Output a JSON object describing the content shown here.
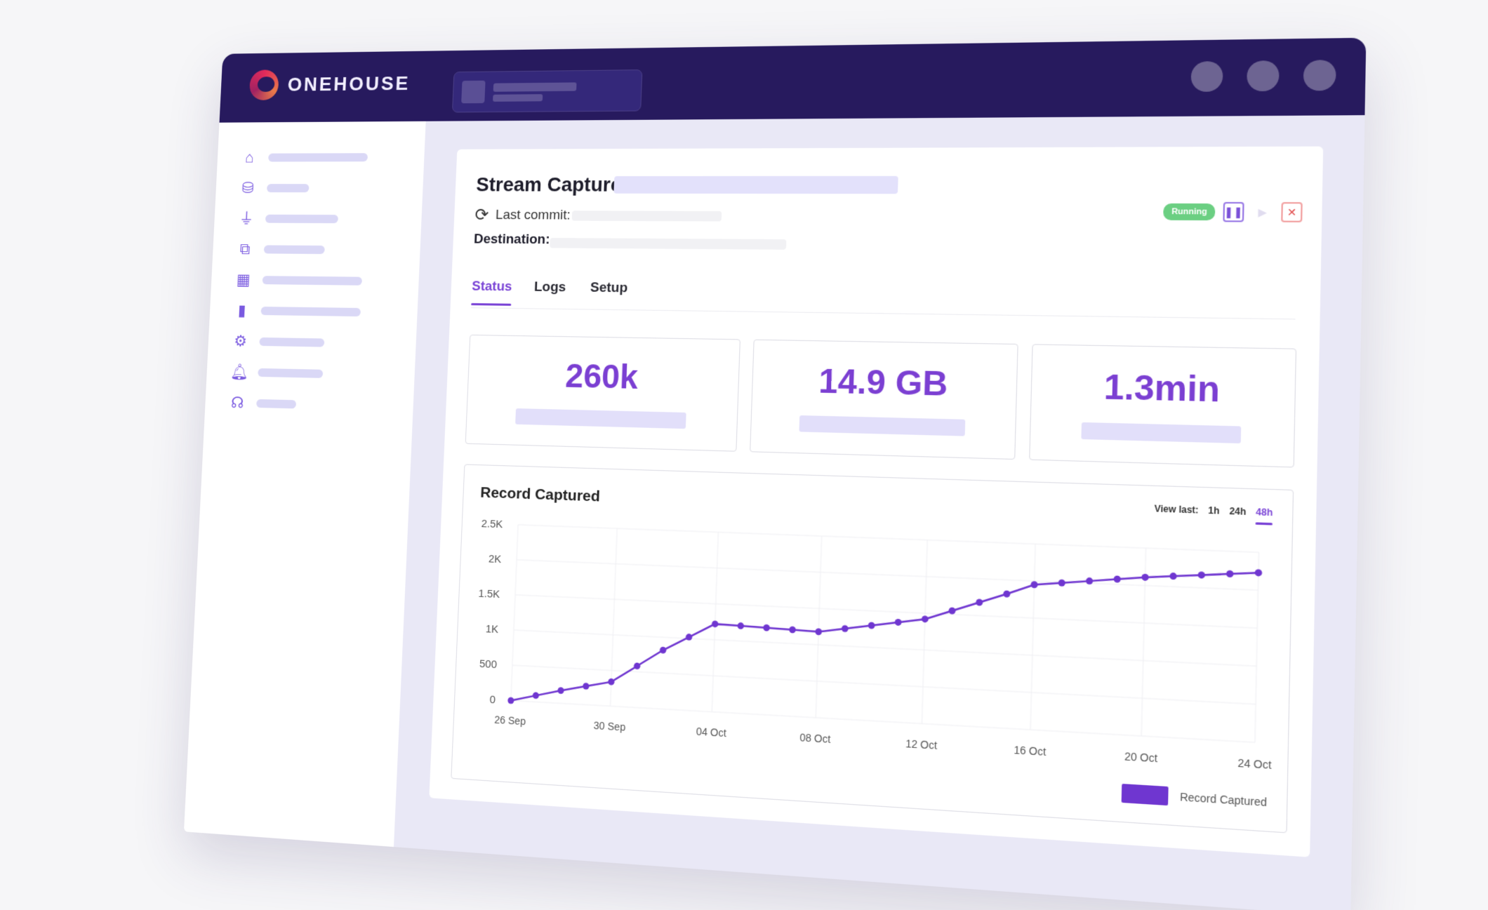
{
  "app": {
    "brand": "ONEHOUSE"
  },
  "card": {
    "title": "Stream Capture",
    "last_commit_label": "Last commit:",
    "destination_label": "Destination:",
    "status_badge": "Running"
  },
  "tabs": [
    "Status",
    "Logs",
    "Setup"
  ],
  "stats": [
    {
      "value": "260k"
    },
    {
      "value": "14.9 GB"
    },
    {
      "value": "1.3min"
    }
  ],
  "view_last": {
    "label": "View last:",
    "options": [
      "1h",
      "24h",
      "48h"
    ],
    "selected": "48h"
  },
  "legend": {
    "label": "Record Captured"
  },
  "colors": {
    "accent": "#7a44d6",
    "topbar": "#271a5e",
    "running": "#6bcf82",
    "line": "#6f36d0"
  },
  "sidebar": {
    "icons": [
      "home-icon",
      "database-icon",
      "filter-icon",
      "connections-icon",
      "table-icon",
      "bar-chart-icon",
      "gear-icon",
      "bell-icon",
      "headset-icon"
    ]
  },
  "chart_data": {
    "type": "line",
    "title": "Record Captured",
    "x": [
      "26 Sep",
      "27 Sep",
      "28 Sep",
      "29 Sep",
      "30 Sep",
      "01 Oct",
      "02 Oct",
      "03 Oct",
      "04 Oct",
      "05 Oct",
      "06 Oct",
      "07 Oct",
      "08 Oct",
      "09 Oct",
      "10 Oct",
      "11 Oct",
      "12 Oct",
      "13 Oct",
      "14 Oct",
      "15 Oct",
      "16 Oct",
      "17 Oct",
      "18 Oct",
      "19 Oct",
      "20 Oct",
      "21 Oct",
      "22 Oct",
      "23 Oct",
      "24 Oct"
    ],
    "x_ticks": [
      "26 Sep",
      "30 Sep",
      "04 Oct",
      "08 Oct",
      "12 Oct",
      "16 Oct",
      "20 Oct",
      "24 Oct"
    ],
    "series": [
      {
        "name": "Record Captured",
        "values": [
          0,
          90,
          180,
          260,
          340,
          580,
          820,
          1020,
          1220,
          1210,
          1200,
          1190,
          1180,
          1240,
          1300,
          1360,
          1420,
          1550,
          1680,
          1810,
          1950,
          1990,
          2030,
          2070,
          2110,
          2140,
          2170,
          2200,
          2230
        ]
      }
    ],
    "ylim": [
      0,
      2500
    ],
    "y_ticks": [
      "0",
      "500",
      "1K",
      "1.5K",
      "2K",
      "2.5K"
    ],
    "y_tick_values": [
      0,
      500,
      1000,
      1500,
      2000,
      2500
    ],
    "grid": true,
    "legend_position": "bottom-right"
  }
}
